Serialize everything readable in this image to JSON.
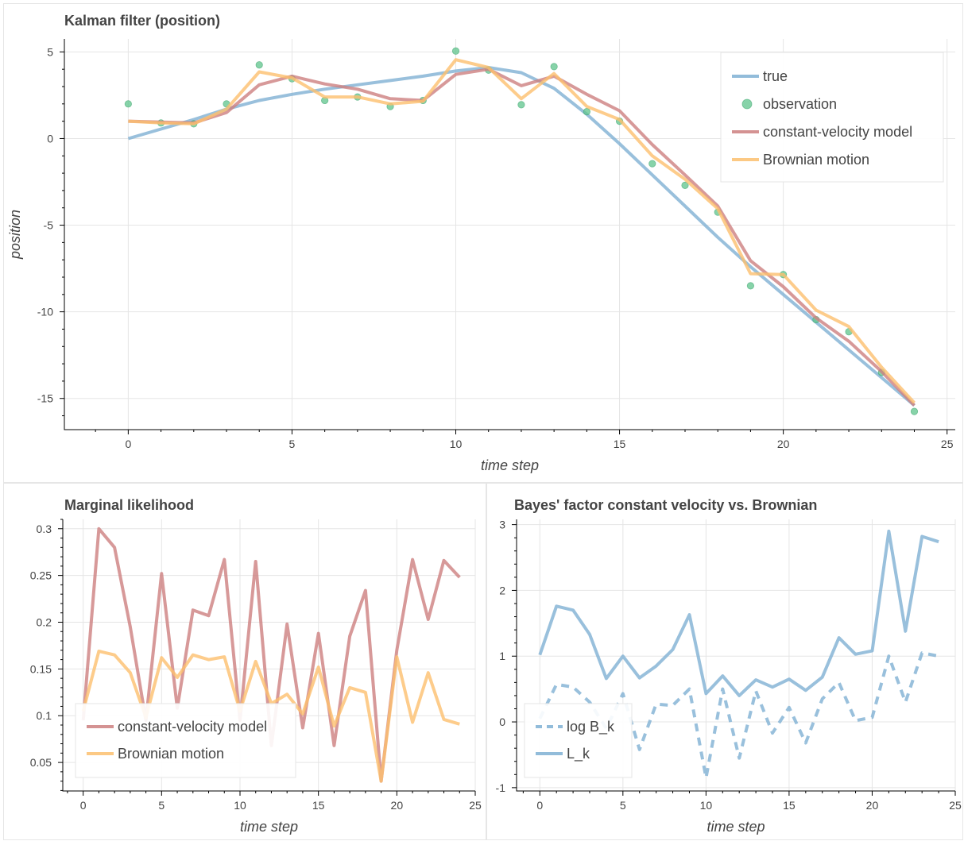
{
  "colors": {
    "true": "#7fb0d3",
    "observation": "#5fc48c",
    "cv": "#cd7f7f",
    "brownian": "#fcbf6e",
    "grid": "#e5e5e5",
    "axis": "#000000"
  },
  "chart_data": [
    {
      "type": "line",
      "title": "Kalman filter (position)",
      "xlabel": "time step",
      "ylabel": "position",
      "xlim": [
        -1.95,
        25.25
      ],
      "ylim": [
        -16.8,
        5.75
      ],
      "xticks": [
        0,
        5,
        10,
        15,
        20,
        25
      ],
      "yticks": [
        5,
        0,
        -5,
        -10,
        -15
      ],
      "ytick_labels": [
        "5",
        "0",
        "-5",
        "-10",
        "-15"
      ],
      "grid": true,
      "legend": "top-right",
      "series": [
        {
          "name": "true",
          "kind": "line",
          "color_key": "true",
          "x": [
            0,
            1,
            2,
            3,
            4,
            5,
            6,
            7,
            8,
            9,
            10,
            11,
            12,
            13,
            14,
            15,
            16,
            17,
            18,
            19,
            20,
            21,
            22,
            23,
            24
          ],
          "y": [
            0.0,
            0.55,
            1.1,
            1.7,
            2.2,
            2.55,
            2.85,
            3.1,
            3.35,
            3.6,
            3.9,
            4.1,
            3.8,
            2.9,
            1.4,
            -0.3,
            -2.1,
            -3.9,
            -5.7,
            -7.4,
            -9.0,
            -10.6,
            -12.2,
            -13.8,
            -15.4
          ]
        },
        {
          "name": "observation",
          "kind": "scatter",
          "color_key": "observation",
          "x": [
            0,
            1,
            2,
            3,
            4,
            5,
            6,
            7,
            8,
            9,
            10,
            11,
            12,
            13,
            14,
            15,
            16,
            17,
            18,
            19,
            20,
            21,
            22,
            23,
            24
          ],
          "y": [
            2.0,
            0.9,
            0.85,
            2.0,
            4.25,
            3.45,
            2.2,
            2.4,
            1.85,
            2.2,
            5.05,
            3.95,
            1.95,
            4.15,
            1.55,
            1.0,
            -1.45,
            -2.7,
            -4.25,
            -8.5,
            -7.85,
            -10.45,
            -11.15,
            -13.5,
            -15.75
          ]
        },
        {
          "name": "constant-velocity model",
          "kind": "line",
          "color_key": "cv",
          "x": [
            0,
            1,
            2,
            3,
            4,
            5,
            6,
            7,
            8,
            9,
            10,
            11,
            12,
            13,
            14,
            15,
            16,
            17,
            18,
            19,
            20,
            21,
            22,
            23,
            24
          ],
          "y": [
            1.0,
            0.95,
            0.9,
            1.5,
            3.1,
            3.6,
            3.15,
            2.85,
            2.3,
            2.2,
            3.7,
            4.0,
            3.05,
            3.6,
            2.55,
            1.6,
            -0.35,
            -2.1,
            -3.9,
            -7.05,
            -8.55,
            -10.35,
            -11.7,
            -13.45,
            -15.4
          ]
        },
        {
          "name": "Brownian motion",
          "kind": "line",
          "color_key": "brownian",
          "x": [
            0,
            1,
            2,
            3,
            4,
            5,
            6,
            7,
            8,
            9,
            10,
            11,
            12,
            13,
            14,
            15,
            16,
            17,
            18,
            19,
            20,
            21,
            22,
            23,
            24
          ],
          "y": [
            1.0,
            0.9,
            0.85,
            1.7,
            3.85,
            3.5,
            2.4,
            2.4,
            2.0,
            2.15,
            4.55,
            4.1,
            2.3,
            3.75,
            1.85,
            1.1,
            -1.0,
            -2.35,
            -4.05,
            -7.8,
            -7.85,
            -9.9,
            -10.85,
            -13.2,
            -15.25
          ]
        }
      ]
    },
    {
      "type": "line",
      "title": "Marginal likelihood",
      "xlabel": "time step",
      "ylabel": "",
      "xlim": [
        -1.3,
        25.0
      ],
      "ylim": [
        0.0195,
        0.31
      ],
      "xticks": [
        0,
        5,
        10,
        15,
        20,
        25
      ],
      "yticks": [
        0.3,
        0.25,
        0.2,
        0.15,
        0.1,
        0.05
      ],
      "ytick_labels": [
        "0.3",
        "0.25",
        "0.2",
        "0.15",
        "0.1",
        "0.05"
      ],
      "grid": true,
      "legend": "bottom-left",
      "series": [
        {
          "name": "constant-velocity model",
          "kind": "line",
          "color_key": "cv",
          "x": [
            0,
            1,
            2,
            3,
            4,
            5,
            6,
            7,
            8,
            9,
            10,
            11,
            12,
            13,
            14,
            15,
            16,
            17,
            18,
            19,
            20,
            21,
            22,
            23,
            24
          ],
          "y": [
            0.095,
            0.3,
            0.28,
            0.195,
            0.095,
            0.252,
            0.108,
            0.213,
            0.207,
            0.267,
            0.095,
            0.265,
            0.068,
            0.198,
            0.087,
            0.188,
            0.068,
            0.185,
            0.234,
            0.03,
            0.17,
            0.267,
            0.203,
            0.266,
            0.248
          ]
        },
        {
          "name": "Brownian motion",
          "kind": "line",
          "color_key": "brownian",
          "x": [
            0,
            1,
            2,
            3,
            4,
            5,
            6,
            7,
            8,
            9,
            10,
            11,
            12,
            13,
            14,
            15,
            16,
            17,
            18,
            19,
            20,
            21,
            22,
            23,
            24
          ],
          "y": [
            0.105,
            0.169,
            0.165,
            0.146,
            0.098,
            0.162,
            0.141,
            0.165,
            0.16,
            0.163,
            0.105,
            0.158,
            0.113,
            0.123,
            0.102,
            0.152,
            0.089,
            0.13,
            0.125,
            0.03,
            0.163,
            0.093,
            0.146,
            0.096,
            0.091
          ]
        }
      ]
    },
    {
      "type": "line",
      "title": "Bayes' factor constant velocity vs. Brownian",
      "xlabel": "time step",
      "ylabel": "",
      "xlim": [
        -1.4,
        25.0
      ],
      "ylim": [
        -1.05,
        3.08
      ],
      "xticks": [
        0,
        5,
        10,
        15,
        20,
        25
      ],
      "yticks": [
        3,
        2,
        1,
        0,
        -1
      ],
      "ytick_labels": [
        "3",
        "2",
        "1",
        "0",
        "-1"
      ],
      "grid": true,
      "legend": "bottom-left",
      "series": [
        {
          "name": "log B_k",
          "kind": "line",
          "dashed": true,
          "color_key": "true",
          "x": [
            0,
            1,
            2,
            3,
            4,
            5,
            6,
            7,
            8,
            9,
            10,
            11,
            12,
            13,
            14,
            15,
            16,
            17,
            18,
            19,
            20,
            21,
            22,
            23,
            24
          ],
          "y": [
            0.05,
            0.57,
            0.53,
            0.3,
            -0.1,
            0.43,
            -0.42,
            0.27,
            0.25,
            0.5,
            -0.85,
            0.5,
            -0.55,
            0.47,
            -0.17,
            0.22,
            -0.32,
            0.35,
            0.6,
            0.02,
            0.07,
            1.0,
            0.3,
            1.05,
            1.0
          ]
        },
        {
          "name": "L_k",
          "kind": "line",
          "color_key": "true",
          "x": [
            0,
            1,
            2,
            3,
            4,
            5,
            6,
            7,
            8,
            9,
            10,
            11,
            12,
            13,
            14,
            15,
            16,
            17,
            18,
            19,
            20,
            21,
            22,
            23,
            24
          ],
          "y": [
            1.02,
            1.76,
            1.7,
            1.33,
            0.66,
            1.0,
            0.67,
            0.85,
            1.1,
            1.63,
            0.43,
            0.7,
            0.4,
            0.64,
            0.53,
            0.65,
            0.48,
            0.68,
            1.28,
            1.03,
            1.08,
            2.9,
            1.38,
            2.82,
            2.74
          ]
        }
      ]
    }
  ]
}
